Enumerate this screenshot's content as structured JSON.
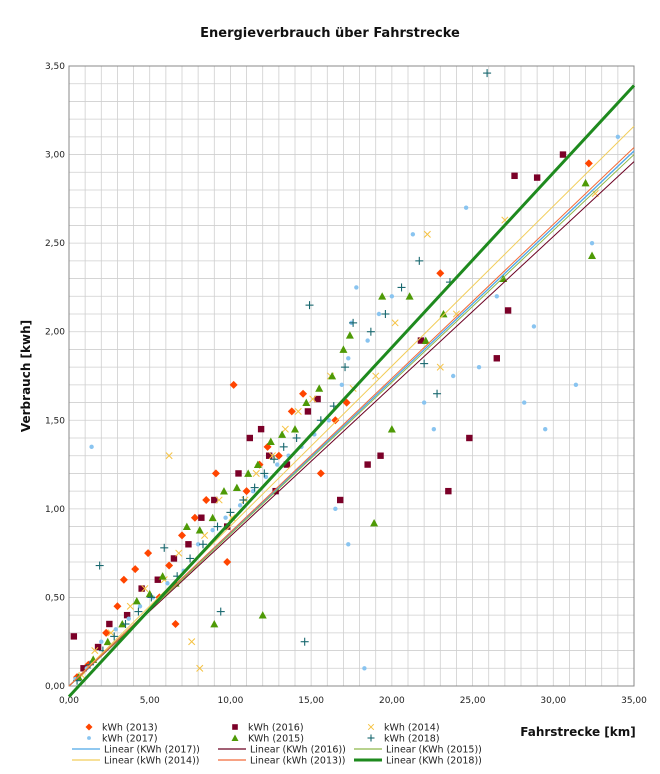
{
  "chart_data": {
    "type": "scatter",
    "title": "Energieverbrauch über Fahrstrecke",
    "xlabel": "Fahrstrecke [km]",
    "ylabel": "Verbrauch [kwh]",
    "xlim": [
      0,
      35
    ],
    "ylim": [
      0,
      3.5
    ],
    "x_ticks": [
      "0,00",
      "5,00",
      "10,00",
      "15,00",
      "20,00",
      "25,00",
      "30,00",
      "35,00"
    ],
    "y_ticks": [
      "0,00",
      "0,50",
      "1,00",
      "1,50",
      "2,00",
      "2,50",
      "3,00",
      "3,50"
    ],
    "grid": "both",
    "legend_position": "bottom",
    "series": [
      {
        "name": "kWh (2013)",
        "marker": "diamond",
        "color": "#ff4500",
        "points": [
          [
            0.5,
            0.05
          ],
          [
            1.2,
            0.12
          ],
          [
            2.3,
            0.3
          ],
          [
            3.0,
            0.45
          ],
          [
            4.1,
            0.66
          ],
          [
            4.9,
            0.75
          ],
          [
            5.6,
            0.5
          ],
          [
            6.2,
            0.68
          ],
          [
            7.0,
            0.85
          ],
          [
            7.8,
            0.95
          ],
          [
            8.5,
            1.05
          ],
          [
            9.1,
            1.2
          ],
          [
            10.2,
            1.7
          ],
          [
            11.0,
            1.1
          ],
          [
            11.8,
            1.25
          ],
          [
            12.3,
            1.35
          ],
          [
            13.0,
            1.3
          ],
          [
            13.8,
            1.55
          ],
          [
            14.5,
            1.65
          ],
          [
            15.6,
            1.2
          ],
          [
            16.5,
            1.5
          ],
          [
            17.2,
            1.6
          ],
          [
            23.0,
            2.33
          ],
          [
            32.2,
            2.95
          ],
          [
            3.4,
            0.6
          ],
          [
            6.6,
            0.35
          ],
          [
            9.8,
            0.7
          ]
        ]
      },
      {
        "name": "kWh (2016)",
        "marker": "square",
        "color": "#7b0028",
        "points": [
          [
            0.3,
            0.28
          ],
          [
            0.9,
            0.1
          ],
          [
            1.8,
            0.22
          ],
          [
            2.5,
            0.35
          ],
          [
            3.6,
            0.4
          ],
          [
            4.5,
            0.55
          ],
          [
            5.5,
            0.6
          ],
          [
            6.5,
            0.72
          ],
          [
            7.4,
            0.8
          ],
          [
            8.2,
            0.95
          ],
          [
            9.0,
            1.05
          ],
          [
            9.8,
            0.9
          ],
          [
            10.5,
            1.2
          ],
          [
            11.2,
            1.4
          ],
          [
            11.9,
            1.45
          ],
          [
            12.4,
            1.3
          ],
          [
            12.8,
            1.1
          ],
          [
            13.5,
            1.25
          ],
          [
            14.8,
            1.55
          ],
          [
            15.4,
            1.62
          ],
          [
            16.8,
            1.05
          ],
          [
            18.5,
            1.25
          ],
          [
            19.3,
            1.3
          ],
          [
            21.8,
            1.95
          ],
          [
            23.5,
            1.1
          ],
          [
            24.8,
            1.4
          ],
          [
            27.2,
            2.12
          ],
          [
            27.6,
            2.88
          ],
          [
            29.0,
            2.87
          ],
          [
            30.6,
            3.0
          ],
          [
            26.5,
            1.85
          ]
        ]
      },
      {
        "name": "kWh (2014)",
        "marker": "x",
        "color": "#f5c242",
        "points": [
          [
            0.8,
            0.06
          ],
          [
            1.6,
            0.2
          ],
          [
            2.6,
            0.3
          ],
          [
            3.8,
            0.45
          ],
          [
            4.7,
            0.55
          ],
          [
            5.9,
            0.6
          ],
          [
            6.8,
            0.75
          ],
          [
            7.6,
            0.25
          ],
          [
            8.4,
            0.85
          ],
          [
            9.3,
            1.05
          ],
          [
            10.1,
            0.95
          ],
          [
            10.9,
            1.05
          ],
          [
            11.6,
            1.2
          ],
          [
            12.6,
            1.3
          ],
          [
            13.4,
            1.45
          ],
          [
            14.2,
            1.55
          ],
          [
            15.1,
            1.62
          ],
          [
            16.2,
            1.75
          ],
          [
            17.6,
            1.68
          ],
          [
            19.0,
            1.75
          ],
          [
            20.2,
            2.05
          ],
          [
            22.2,
            2.55
          ],
          [
            23.0,
            1.8
          ],
          [
            24.0,
            2.1
          ],
          [
            27.0,
            2.63
          ],
          [
            32.6,
            2.78
          ],
          [
            6.2,
            1.3
          ],
          [
            8.1,
            0.1
          ]
        ]
      },
      {
        "name": "kWh (2017)",
        "marker": "dot",
        "color": "#89c4f0",
        "points": [
          [
            0.4,
            0.04
          ],
          [
            1.1,
            0.1
          ],
          [
            1.4,
            1.35
          ],
          [
            2.0,
            0.25
          ],
          [
            2.9,
            0.32
          ],
          [
            3.7,
            0.38
          ],
          [
            4.4,
            0.45
          ],
          [
            5.2,
            0.5
          ],
          [
            6.1,
            0.58
          ],
          [
            7.1,
            0.65
          ],
          [
            8.0,
            0.8
          ],
          [
            8.9,
            0.88
          ],
          [
            9.7,
            0.95
          ],
          [
            10.6,
            1.02
          ],
          [
            11.4,
            1.1
          ],
          [
            12.2,
            1.18
          ],
          [
            12.9,
            1.25
          ],
          [
            13.6,
            1.3
          ],
          [
            14.4,
            1.35
          ],
          [
            15.2,
            1.42
          ],
          [
            16.1,
            1.5
          ],
          [
            16.9,
            1.7
          ],
          [
            17.3,
            1.85
          ],
          [
            17.5,
            2.05
          ],
          [
            17.8,
            2.25
          ],
          [
            18.5,
            1.95
          ],
          [
            19.2,
            2.1
          ],
          [
            20.0,
            2.2
          ],
          [
            21.3,
            2.55
          ],
          [
            22.0,
            1.6
          ],
          [
            22.6,
            1.45
          ],
          [
            23.8,
            1.75
          ],
          [
            24.6,
            2.7
          ],
          [
            25.4,
            1.8
          ],
          [
            26.5,
            2.2
          ],
          [
            28.2,
            1.6
          ],
          [
            28.8,
            2.03
          ],
          [
            29.5,
            1.45
          ],
          [
            31.4,
            1.7
          ],
          [
            32.4,
            2.5
          ],
          [
            34.0,
            3.1
          ],
          [
            17.3,
            0.8
          ],
          [
            18.3,
            0.1
          ],
          [
            16.5,
            1.0
          ]
        ]
      },
      {
        "name": "KWh (2015)",
        "marker": "triangle",
        "color": "#4e9a06",
        "points": [
          [
            0.6,
            0.05
          ],
          [
            1.5,
            0.15
          ],
          [
            2.4,
            0.25
          ],
          [
            3.3,
            0.35
          ],
          [
            4.2,
            0.48
          ],
          [
            5.0,
            0.52
          ],
          [
            5.8,
            0.62
          ],
          [
            6.6,
            0.58
          ],
          [
            7.3,
            0.9
          ],
          [
            8.1,
            0.88
          ],
          [
            8.9,
            0.95
          ],
          [
            9.6,
            1.1
          ],
          [
            10.4,
            1.12
          ],
          [
            11.1,
            1.2
          ],
          [
            11.7,
            1.25
          ],
          [
            12.5,
            1.38
          ],
          [
            13.2,
            1.42
          ],
          [
            14.0,
            1.45
          ],
          [
            14.7,
            1.6
          ],
          [
            15.5,
            1.68
          ],
          [
            16.3,
            1.75
          ],
          [
            17.0,
            1.9
          ],
          [
            18.9,
            0.92
          ],
          [
            19.4,
            2.2
          ],
          [
            20.0,
            1.45
          ],
          [
            21.1,
            2.2
          ],
          [
            22.1,
            1.95
          ],
          [
            23.2,
            2.1
          ],
          [
            26.9,
            2.3
          ],
          [
            32.0,
            2.84
          ],
          [
            32.4,
            2.43
          ],
          [
            17.4,
            1.98
          ],
          [
            9.0,
            0.35
          ],
          [
            12.0,
            0.4
          ]
        ]
      },
      {
        "name": "kWh (2018)",
        "marker": "plus",
        "color": "#17676e",
        "points": [
          [
            0.5,
            0.03
          ],
          [
            1.3,
            0.12
          ],
          [
            1.9,
            0.68
          ],
          [
            2.1,
            0.2
          ],
          [
            2.8,
            0.28
          ],
          [
            3.5,
            0.35
          ],
          [
            4.3,
            0.42
          ],
          [
            5.1,
            0.5
          ],
          [
            5.9,
            0.78
          ],
          [
            6.7,
            0.62
          ],
          [
            7.5,
            0.72
          ],
          [
            8.3,
            0.8
          ],
          [
            9.2,
            0.9
          ],
          [
            10.0,
            0.98
          ],
          [
            10.8,
            1.05
          ],
          [
            11.5,
            1.12
          ],
          [
            12.1,
            1.2
          ],
          [
            12.7,
            1.28
          ],
          [
            13.3,
            1.35
          ],
          [
            14.1,
            1.4
          ],
          [
            14.9,
            2.15
          ],
          [
            15.6,
            1.5
          ],
          [
            16.4,
            1.58
          ],
          [
            17.1,
            1.8
          ],
          [
            17.6,
            2.05
          ],
          [
            18.7,
            2.0
          ],
          [
            19.6,
            2.1
          ],
          [
            20.6,
            2.25
          ],
          [
            21.7,
            2.4
          ],
          [
            22.0,
            1.82
          ],
          [
            22.8,
            1.65
          ],
          [
            23.6,
            2.28
          ],
          [
            25.9,
            3.46
          ],
          [
            9.4,
            0.42
          ],
          [
            14.6,
            0.25
          ]
        ]
      }
    ],
    "trendlines": [
      {
        "name": "Linear (KWh (2017))",
        "color": "#4da6e8",
        "width": 1.3,
        "x": [
          0,
          35
        ],
        "y": [
          0.0,
          3.02
        ]
      },
      {
        "name": "Linear (KWh (2016))",
        "color": "#6b0022",
        "width": 1.0,
        "x": [
          0,
          35
        ],
        "y": [
          0.0,
          2.96
        ]
      },
      {
        "name": "Linear (KWh (2015))",
        "color": "#8db84a",
        "width": 1.0,
        "x": [
          0,
          35
        ],
        "y": [
          0.0,
          3.0
        ]
      },
      {
        "name": "Linear (kWh (2014))",
        "color": "#f2cd5a",
        "width": 1.0,
        "x": [
          0,
          35
        ],
        "y": [
          0.0,
          3.16
        ]
      },
      {
        "name": "Linear (kWh (2013))",
        "color": "#f26b3a",
        "width": 1.0,
        "x": [
          0,
          35
        ],
        "y": [
          0.0,
          3.04
        ]
      },
      {
        "name": "Linear (KWh (2018))",
        "color": "#1e8a1e",
        "width": 3.0,
        "x": [
          0,
          35
        ],
        "y": [
          -0.06,
          3.39
        ]
      }
    ]
  }
}
